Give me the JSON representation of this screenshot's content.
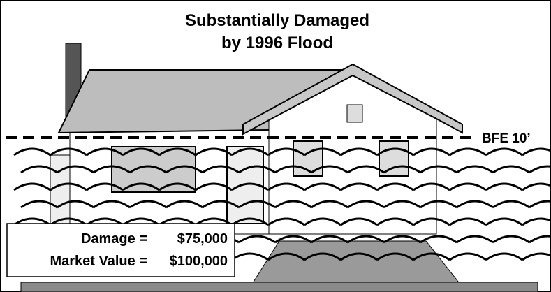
{
  "title": {
    "line1": "Substantially Damaged",
    "line2": "by 1996 Flood"
  },
  "flood_line": {
    "label": "BFE 10’"
  },
  "damage_box": {
    "damage_label": "Damage =",
    "damage_value": "$75,000",
    "market_label": "Market Value =",
    "market_value": "$100,000"
  }
}
